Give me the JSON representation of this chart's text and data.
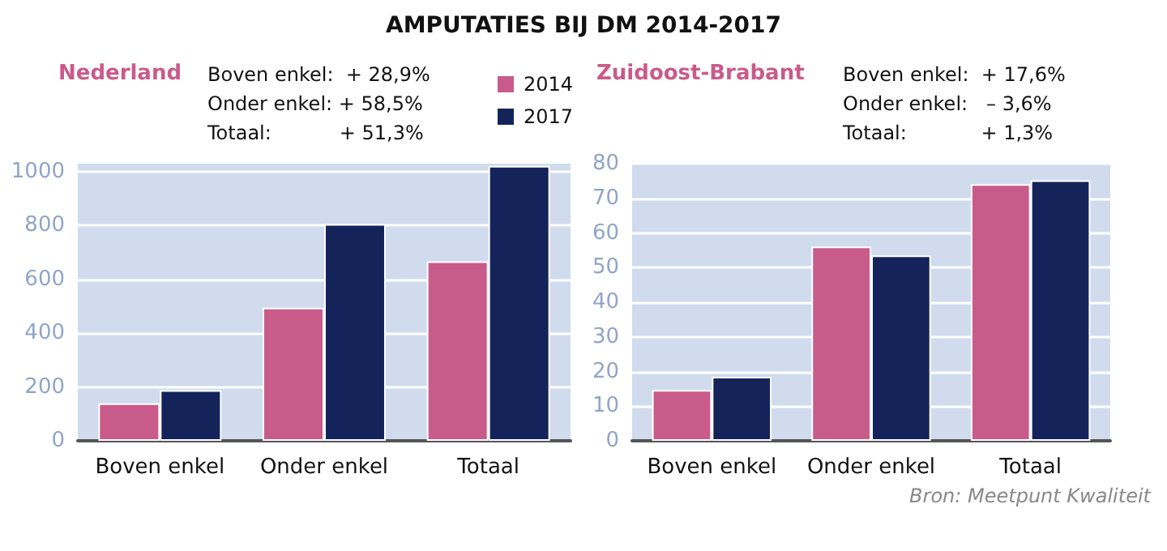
{
  "chart_data": [
    {
      "type": "bar",
      "title": "AMPUTATIES BIJ DM 2014-2017",
      "subtitle": "Nederland",
      "annotations": [
        "Boven enkel:  + 28,9%",
        "Onder enkel: + 58,5%",
        "Totaal:           + 51,3%"
      ],
      "categories": [
        "Boven enkel",
        "Onder enkel",
        "Totaal"
      ],
      "series": [
        {
          "name": "2014",
          "color": "#c95b8a",
          "values": [
            139,
            495,
            667
          ]
        },
        {
          "name": "2017",
          "color": "#14245a",
          "values": [
            188,
            806,
            1022
          ]
        }
      ],
      "ylim": [
        0,
        1030
      ],
      "yticks": [
        0,
        200,
        400,
        600,
        800,
        1000
      ],
      "grid": "y",
      "legend": "top right"
    },
    {
      "type": "bar",
      "subtitle": "Zuidoost-Brabant",
      "annotations": [
        "Boven enkel:  + 17,6%",
        "Onder enkel:   – 3,6%",
        "Totaal:            + 1,3%",
        "Bron: Meetpunt Kwaliteit"
      ],
      "categories": [
        "Boven enkel",
        "Onder enkel",
        "Totaal"
      ],
      "series": [
        {
          "color": "#c95b8a",
          "values": [
            14.7,
            56.1,
            74.1
          ]
        },
        {
          "color": "#14245a",
          "values": [
            18.5,
            53.5,
            75.2
          ]
        }
      ],
      "ylim": [
        0,
        80
      ],
      "yticks": [
        0,
        10,
        20,
        30,
        40,
        50,
        60,
        70,
        80
      ],
      "grid": "y"
    }
  ]
}
